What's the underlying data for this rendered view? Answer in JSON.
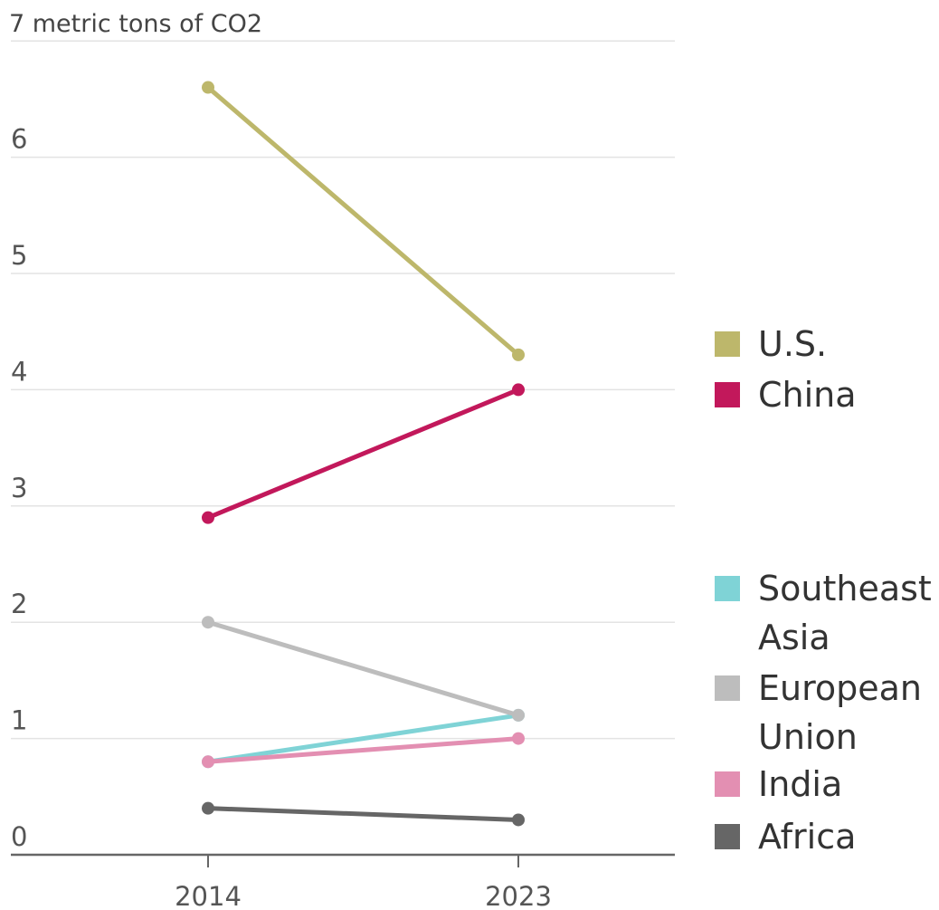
{
  "chart_data": {
    "type": "line",
    "title": "",
    "ylabel": "",
    "xlabel": "",
    "x": [
      "2014",
      "2023"
    ],
    "ylim": [
      0,
      7
    ],
    "yticks": [
      {
        "value": 7,
        "label": "7 metric tons of CO2"
      },
      {
        "value": 6,
        "label": "6"
      },
      {
        "value": 5,
        "label": "5"
      },
      {
        "value": 4,
        "label": "4"
      },
      {
        "value": 3,
        "label": "3"
      },
      {
        "value": 2,
        "label": "2"
      },
      {
        "value": 1,
        "label": "1"
      },
      {
        "value": 0,
        "label": "0"
      }
    ],
    "grid": true,
    "legend_position": "right",
    "series": [
      {
        "name": "U.S.",
        "color": "#bdb76b",
        "values": [
          6.6,
          4.3
        ],
        "legend": [
          "U.S."
        ]
      },
      {
        "name": "China",
        "color": "#c2185b",
        "values": [
          2.9,
          4.0
        ],
        "legend": [
          "China"
        ]
      },
      {
        "name": "Southeast Asia",
        "color": "#7fd3d6",
        "values": [
          0.8,
          1.2
        ],
        "legend": [
          "Southeast",
          "Asia"
        ]
      },
      {
        "name": "European Union",
        "color": "#bdbdbd",
        "values": [
          2.0,
          1.2
        ],
        "legend": [
          "European",
          "Union"
        ]
      },
      {
        "name": "India",
        "color": "#e38fb2",
        "values": [
          0.8,
          1.0
        ],
        "legend": [
          "India"
        ]
      },
      {
        "name": "Africa",
        "color": "#666666",
        "values": [
          0.4,
          0.3
        ],
        "legend": [
          "Africa"
        ]
      }
    ]
  }
}
